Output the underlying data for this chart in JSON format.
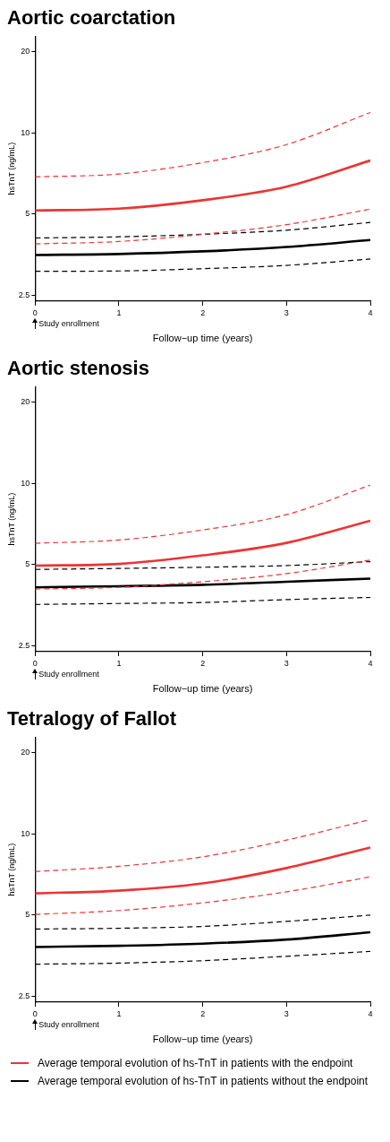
{
  "chart_data": [
    {
      "type": "line",
      "title": "Aortic coarctation",
      "xlabel": "Follow−up time (years)",
      "ylabel": "hsTnT (ng/mL)",
      "x": [
        0,
        1,
        2,
        3,
        4
      ],
      "xlim": [
        0,
        4
      ],
      "xticks": [
        0,
        1,
        2,
        3,
        4
      ],
      "log": "y",
      "ylim": [
        2.38,
        22.8
      ],
      "yticks": [
        2.5,
        5,
        10,
        20
      ],
      "grid": false,
      "legend": "bottom",
      "annotations": [
        "Study enrollment"
      ],
      "series": [
        {
          "name": "Average temporal evolution of hs-TnT in patients with the endpoint",
          "color": "#ee3333",
          "values": [
            5.16,
            5.24,
            5.63,
            6.32,
            7.9
          ]
        },
        {
          "color": "#ee3333",
          "line_style": "dashed",
          "values": [
            6.87,
            7.04,
            7.76,
            9.05,
            11.9
          ]
        },
        {
          "color": "#ee3333",
          "line_style": "dashed",
          "values": [
            3.88,
            3.96,
            4.21,
            4.57,
            5.22
          ]
        },
        {
          "name": "Average temporal evolution of hs-TnT in patients without the endpoint",
          "color": "#000000",
          "values": [
            3.53,
            3.56,
            3.64,
            3.78,
            4.01
          ]
        },
        {
          "color": "#000000",
          "line_style": "dashed",
          "values": [
            4.08,
            4.12,
            4.21,
            4.36,
            4.66
          ]
        },
        {
          "color": "#000000",
          "line_style": "dashed",
          "values": [
            3.07,
            3.08,
            3.14,
            3.23,
            3.41
          ]
        }
      ]
    },
    {
      "type": "line",
      "title": "Aortic stenosis",
      "xlabel": "Follow−up time (years)",
      "ylabel": "hsTnT (ng/mL)",
      "x": [
        0,
        1,
        2,
        3,
        4
      ],
      "xlim": [
        0,
        4
      ],
      "xticks": [
        0,
        1,
        2,
        3,
        4
      ],
      "log": "y",
      "ylim": [
        2.38,
        22.8
      ],
      "yticks": [
        2.5,
        5,
        10,
        20
      ],
      "grid": false,
      "annotations": [
        "Study enrollment"
      ],
      "series": [
        {
          "color": "#ee3333",
          "values": [
            4.96,
            5.03,
            5.41,
            6.02,
            7.27
          ]
        },
        {
          "color": "#ee3333",
          "line_style": "dashed",
          "values": [
            6.0,
            6.17,
            6.72,
            7.66,
            9.85
          ]
        },
        {
          "color": "#ee3333",
          "line_style": "dashed",
          "values": [
            4.06,
            4.12,
            4.32,
            4.63,
            5.2
          ]
        },
        {
          "color": "#000000",
          "values": [
            4.12,
            4.16,
            4.21,
            4.32,
            4.44
          ]
        },
        {
          "color": "#000000",
          "line_style": "dashed",
          "values": [
            4.8,
            4.84,
            4.89,
            4.96,
            5.13
          ]
        },
        {
          "color": "#000000",
          "line_style": "dashed",
          "values": [
            3.56,
            3.59,
            3.62,
            3.71,
            3.78
          ]
        }
      ]
    },
    {
      "type": "line",
      "title": "Tetralogy of Fallot",
      "xlabel": "Follow−up time (years)",
      "ylabel": "hsTnT (ng/mL)",
      "x": [
        0,
        1,
        2,
        3,
        4
      ],
      "xlim": [
        0,
        4
      ],
      "xticks": [
        0,
        1,
        2,
        3,
        4
      ],
      "log": "y",
      "ylim": [
        2.38,
        22.8
      ],
      "yticks": [
        2.5,
        5,
        10,
        20
      ],
      "grid": false,
      "annotations": [
        "Study enrollment"
      ],
      "series": [
        {
          "color": "#ee3333",
          "values": [
            6.02,
            6.16,
            6.55,
            7.47,
            8.9
          ]
        },
        {
          "color": "#ee3333",
          "line_style": "dashed",
          "values": [
            7.25,
            7.58,
            8.22,
            9.48,
            11.3
          ]
        },
        {
          "color": "#ee3333",
          "line_style": "dashed",
          "values": [
            5.03,
            5.2,
            5.55,
            6.1,
            6.93
          ]
        },
        {
          "color": "#000000",
          "values": [
            3.81,
            3.85,
            3.92,
            4.06,
            4.32
          ]
        },
        {
          "color": "#000000",
          "line_style": "dashed",
          "values": [
            4.44,
            4.47,
            4.54,
            4.74,
            5.0
          ]
        },
        {
          "color": "#000000",
          "line_style": "dashed",
          "values": [
            3.29,
            3.32,
            3.39,
            3.52,
            3.67
          ]
        }
      ]
    }
  ]
}
